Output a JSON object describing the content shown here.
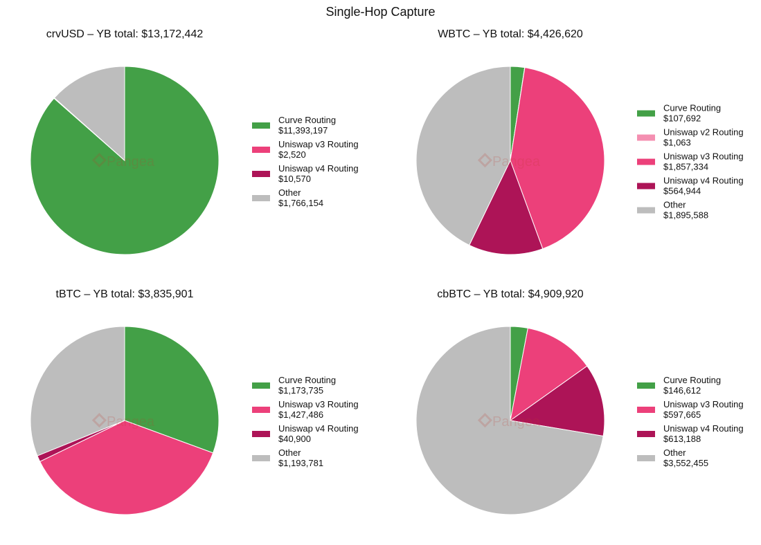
{
  "title": "Single-Hop Capture",
  "watermark": "Pangea",
  "colors": {
    "Curve Routing": "#43a047",
    "Uniswap v2 Routing": "#f48fb1",
    "Uniswap v3 Routing": "#ec407a",
    "Uniswap v4 Routing": "#ad1457",
    "Other": "#bdbdbd"
  },
  "chart_data": [
    {
      "type": "pie",
      "title": "crvUSD – YB total: $13,172,442",
      "labels": [
        "Curve Routing",
        "Uniswap v3 Routing",
        "Uniswap v4 Routing",
        "Other"
      ],
      "values": [
        11393197,
        2520,
        10570,
        1766154
      ],
      "value_labels": [
        "$11,393,197",
        "$2,520",
        "$10,570",
        "$1,766,154"
      ],
      "legend": "right"
    },
    {
      "type": "pie",
      "title": "WBTC – YB total: $4,426,620",
      "labels": [
        "Curve Routing",
        "Uniswap v2 Routing",
        "Uniswap v3 Routing",
        "Uniswap v4 Routing",
        "Other"
      ],
      "values": [
        107692,
        1063,
        1857334,
        564944,
        1895588
      ],
      "value_labels": [
        "$107,692",
        "$1,063",
        "$1,857,334",
        "$564,944",
        "$1,895,588"
      ],
      "legend": "right"
    },
    {
      "type": "pie",
      "title": "tBTC – YB total: $3,835,901",
      "labels": [
        "Curve Routing",
        "Uniswap v3 Routing",
        "Uniswap v4 Routing",
        "Other"
      ],
      "values": [
        1173735,
        1427486,
        40900,
        1193781
      ],
      "value_labels": [
        "$1,173,735",
        "$1,427,486",
        "$40,900",
        "$1,193,781"
      ],
      "legend": "right"
    },
    {
      "type": "pie",
      "title": "cbBTC – YB total: $4,909,920",
      "labels": [
        "Curve Routing",
        "Uniswap v3 Routing",
        "Uniswap v4 Routing",
        "Other"
      ],
      "values": [
        146612,
        597665,
        613188,
        3552455
      ],
      "value_labels": [
        "$146,612",
        "$597,665",
        "$613,188",
        "$3,552,455"
      ],
      "legend": "right"
    }
  ]
}
